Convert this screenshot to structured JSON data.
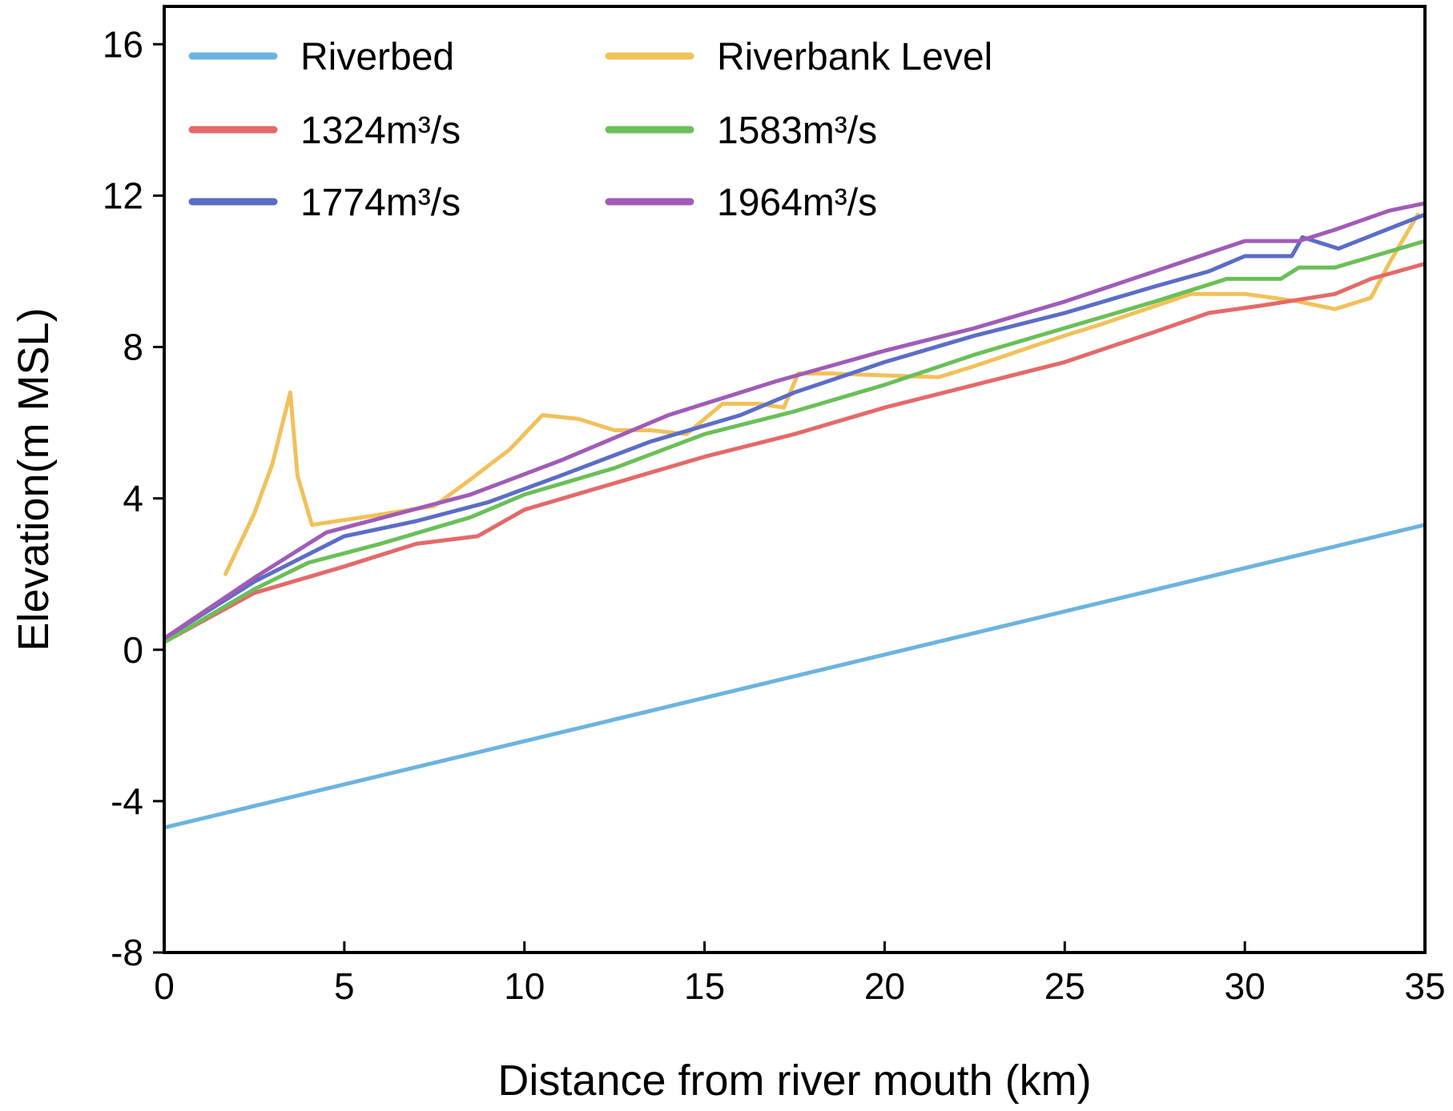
{
  "chart_data": {
    "type": "line",
    "xlabel": "Distance from river mouth (km)",
    "ylabel": "Elevation(m MSL)",
    "xlim": [
      0,
      35
    ],
    "ylim": [
      -8,
      17
    ],
    "xticks": [
      0,
      5,
      10,
      15,
      20,
      25,
      30,
      35
    ],
    "yticks": [
      -8,
      -4,
      0,
      4,
      8,
      12,
      16
    ],
    "grid": false,
    "legend_position": "top-left",
    "legend_columns": 2,
    "series": [
      {
        "name": "Riverbed",
        "color": "#6CB4DE",
        "points": [
          [
            0,
            -4.7
          ],
          [
            35,
            3.3
          ]
        ]
      },
      {
        "name": "Riverbank Level",
        "color": "#F1C15A",
        "points": [
          [
            1.7,
            2.0
          ],
          [
            2.5,
            3.6
          ],
          [
            3.0,
            4.9
          ],
          [
            3.5,
            6.8
          ],
          [
            3.7,
            4.6
          ],
          [
            4.1,
            3.3
          ],
          [
            5.5,
            3.5
          ],
          [
            7.5,
            3.8
          ],
          [
            8.5,
            4.5
          ],
          [
            9.6,
            5.3
          ],
          [
            10.5,
            6.2
          ],
          [
            11.5,
            6.1
          ],
          [
            12.5,
            5.8
          ],
          [
            13.5,
            5.8
          ],
          [
            14.5,
            5.7
          ],
          [
            15.5,
            6.5
          ],
          [
            16.5,
            6.5
          ],
          [
            17.2,
            6.4
          ],
          [
            17.6,
            7.3
          ],
          [
            18.5,
            7.3
          ],
          [
            21.5,
            7.2
          ],
          [
            22.5,
            7.5
          ],
          [
            25.0,
            8.3
          ],
          [
            26.0,
            8.6
          ],
          [
            28.5,
            9.4
          ],
          [
            30.0,
            9.4
          ],
          [
            30.8,
            9.3
          ],
          [
            31.5,
            9.2
          ],
          [
            32.5,
            9.0
          ],
          [
            33.5,
            9.3
          ],
          [
            34.0,
            10.2
          ],
          [
            34.8,
            11.5
          ]
        ]
      },
      {
        "name": "1324m³/s",
        "color": "#E36A69",
        "points": [
          [
            0,
            0.2
          ],
          [
            2.5,
            1.5
          ],
          [
            5.0,
            2.2
          ],
          [
            7.0,
            2.8
          ],
          [
            8.7,
            3.0
          ],
          [
            10.0,
            3.7
          ],
          [
            12.5,
            4.4
          ],
          [
            15.0,
            5.1
          ],
          [
            17.5,
            5.7
          ],
          [
            20.0,
            6.4
          ],
          [
            22.5,
            7.0
          ],
          [
            25.0,
            7.6
          ],
          [
            27.5,
            8.4
          ],
          [
            29.0,
            8.9
          ],
          [
            30.5,
            9.1
          ],
          [
            32.5,
            9.4
          ],
          [
            33.5,
            9.8
          ],
          [
            35,
            10.2
          ]
        ]
      },
      {
        "name": "1583m³/s",
        "color": "#6BBF59",
        "points": [
          [
            0,
            0.2
          ],
          [
            2.5,
            1.6
          ],
          [
            4.0,
            2.3
          ],
          [
            6.0,
            2.8
          ],
          [
            8.5,
            3.5
          ],
          [
            10.0,
            4.1
          ],
          [
            12.5,
            4.8
          ],
          [
            15.0,
            5.7
          ],
          [
            17.5,
            6.3
          ],
          [
            20.0,
            7.0
          ],
          [
            22.5,
            7.8
          ],
          [
            25.0,
            8.5
          ],
          [
            27.5,
            9.2
          ],
          [
            29.5,
            9.8
          ],
          [
            30.5,
            9.8
          ],
          [
            31.0,
            9.8
          ],
          [
            31.5,
            10.1
          ],
          [
            32.5,
            10.1
          ],
          [
            35,
            10.8
          ]
        ]
      },
      {
        "name": "1774m³/s",
        "color": "#5C6DC5",
        "points": [
          [
            0,
            0.3
          ],
          [
            2.5,
            1.8
          ],
          [
            5.0,
            3.0
          ],
          [
            7.0,
            3.4
          ],
          [
            9.0,
            3.9
          ],
          [
            11.0,
            4.6
          ],
          [
            13.5,
            5.5
          ],
          [
            16.0,
            6.2
          ],
          [
            17.5,
            6.8
          ],
          [
            20.0,
            7.6
          ],
          [
            22.5,
            8.3
          ],
          [
            25.0,
            8.9
          ],
          [
            27.5,
            9.6
          ],
          [
            29.0,
            10.0
          ],
          [
            30.0,
            10.4
          ],
          [
            30.8,
            10.4
          ],
          [
            31.3,
            10.4
          ],
          [
            31.6,
            10.9
          ],
          [
            32.6,
            10.6
          ],
          [
            35,
            11.5
          ]
        ]
      },
      {
        "name": "1964m³/s",
        "color": "#A05CB6",
        "points": [
          [
            0,
            0.3
          ],
          [
            2.5,
            1.9
          ],
          [
            4.5,
            3.1
          ],
          [
            6.5,
            3.6
          ],
          [
            8.5,
            4.1
          ],
          [
            11.0,
            5.0
          ],
          [
            14.0,
            6.2
          ],
          [
            17.0,
            7.1
          ],
          [
            20.0,
            7.9
          ],
          [
            22.5,
            8.5
          ],
          [
            25.0,
            9.2
          ],
          [
            27.5,
            10.0
          ],
          [
            30.0,
            10.8
          ],
          [
            31.5,
            10.8
          ],
          [
            32.5,
            11.1
          ],
          [
            34.0,
            11.6
          ],
          [
            35,
            11.8
          ]
        ]
      }
    ]
  }
}
